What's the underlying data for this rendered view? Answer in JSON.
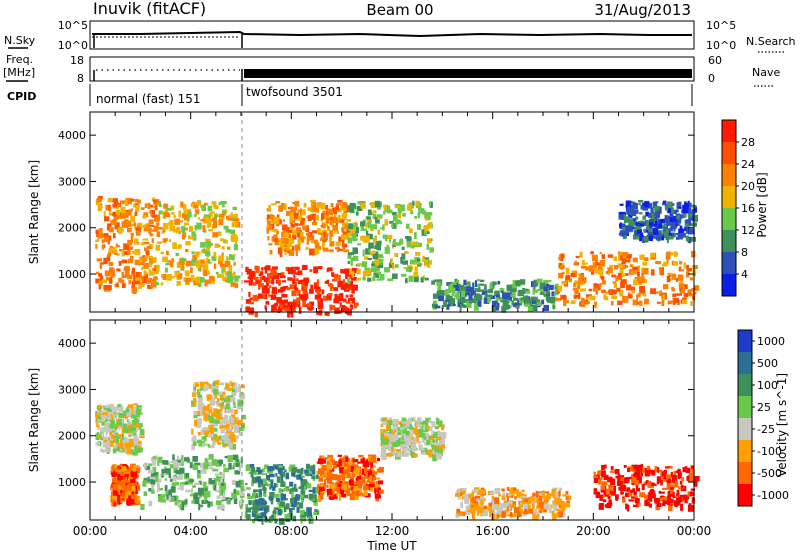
{
  "header": {
    "station": "Inuvik (fitACF)",
    "beam": "Beam 00",
    "date": "31/Aug/2013"
  },
  "top_panels": {
    "nsky_label": "N.Sky",
    "nsky_ticks": [
      "10^5",
      "10^0"
    ],
    "nsearch_label": "N.Search",
    "nsearch_ticks": [
      "10^5",
      "10^0"
    ],
    "freq_label": "Freq.",
    "freq_unit": "[MHz]",
    "freq_ticks": [
      "18",
      "8"
    ],
    "nave_label": "Nave",
    "nave_ticks": [
      "60",
      "0"
    ],
    "cpid_label": "CPID",
    "cpid_segments": [
      {
        "name": "normal (fast) 151",
        "start_h": 0,
        "end_h": 6
      },
      {
        "name": "twofsound 3501",
        "start_h": 6,
        "end_h": 24
      }
    ]
  },
  "chart_data": [
    {
      "type": "heatmap",
      "title": "Power",
      "ylabel": "Slant Range [km]",
      "xlabel": "",
      "xlim": [
        0,
        24
      ],
      "ylim": [
        180,
        4500
      ],
      "yticks": [
        1000,
        2000,
        3000,
        4000
      ],
      "colorbar_label": "Power [dB]",
      "colorbar_ticks": [
        "4",
        "8",
        "12",
        "16",
        "20",
        "24",
        "28"
      ],
      "colorbar_colors": [
        "#0a1ee6",
        "#2e50b8",
        "#3f8f5a",
        "#6ac84a",
        "#f0b400",
        "#ff8000",
        "#ff5000",
        "#ff1a00"
      ],
      "regions": [
        {
          "t0": 0.2,
          "t1": 2.6,
          "r0": 700,
          "r1": 2700,
          "level": 5
        },
        {
          "t0": 2.6,
          "t1": 5.8,
          "r0": 800,
          "r1": 2600,
          "level": 4
        },
        {
          "t0": 6.1,
          "t1": 10.5,
          "r0": 180,
          "r1": 1200,
          "level": 7
        },
        {
          "t0": 7.0,
          "t1": 10.2,
          "r0": 1500,
          "r1": 2600,
          "level": 5
        },
        {
          "t0": 10.2,
          "t1": 13.5,
          "r0": 900,
          "r1": 2600,
          "level": 3
        },
        {
          "t0": 13.5,
          "t1": 18.5,
          "r0": 300,
          "r1": 900,
          "level": 2
        },
        {
          "t0": 18.5,
          "t1": 24.0,
          "r0": 400,
          "r1": 1500,
          "level": 5
        },
        {
          "t0": 21.0,
          "t1": 24.0,
          "r0": 1800,
          "r1": 2600,
          "level": 1
        }
      ]
    },
    {
      "type": "heatmap",
      "title": "Velocity",
      "ylabel": "Slant Range [km]",
      "xlabel": "Time UT",
      "xlim": [
        0,
        24
      ],
      "ylim": [
        180,
        4500
      ],
      "xticks": [
        "00:00",
        "04:00",
        "08:00",
        "12:00",
        "16:00",
        "20:00",
        "00:00"
      ],
      "yticks": [
        1000,
        2000,
        3000,
        4000
      ],
      "colorbar_label": "Velocity [m s^-1]",
      "colorbar_ticks": [
        "1000",
        "500",
        "100",
        "25",
        "-25",
        "-100",
        "-500",
        "-1000"
      ],
      "colorbar_colors": [
        "#1e3cc8",
        "#2c6e96",
        "#3f8f5a",
        "#6ac84a",
        "#c8c8c0",
        "#ffa000",
        "#ff6a00",
        "#ff0000"
      ],
      "regions": [
        {
          "t0": 0.2,
          "t1": 2.0,
          "r0": 1700,
          "r1": 2700,
          "level": 4
        },
        {
          "t0": 0.8,
          "t1": 1.8,
          "r0": 600,
          "r1": 1400,
          "level": 6
        },
        {
          "t0": 2.0,
          "t1": 6.0,
          "r0": 500,
          "r1": 1600,
          "level": 3
        },
        {
          "t0": 4.0,
          "t1": 6.0,
          "r0": 1800,
          "r1": 3200,
          "level": 4
        },
        {
          "t0": 6.1,
          "t1": 9.0,
          "r0": 200,
          "r1": 1400,
          "level": 2
        },
        {
          "t0": 9.0,
          "t1": 11.5,
          "r0": 700,
          "r1": 1600,
          "level": 6
        },
        {
          "t0": 11.5,
          "t1": 14.0,
          "r0": 1600,
          "r1": 2400,
          "level": 4
        },
        {
          "t0": 14.5,
          "t1": 19.0,
          "r0": 300,
          "r1": 900,
          "level": 5
        },
        {
          "t0": 20.0,
          "t1": 24.0,
          "r0": 500,
          "r1": 1400,
          "level": 7
        }
      ]
    }
  ]
}
